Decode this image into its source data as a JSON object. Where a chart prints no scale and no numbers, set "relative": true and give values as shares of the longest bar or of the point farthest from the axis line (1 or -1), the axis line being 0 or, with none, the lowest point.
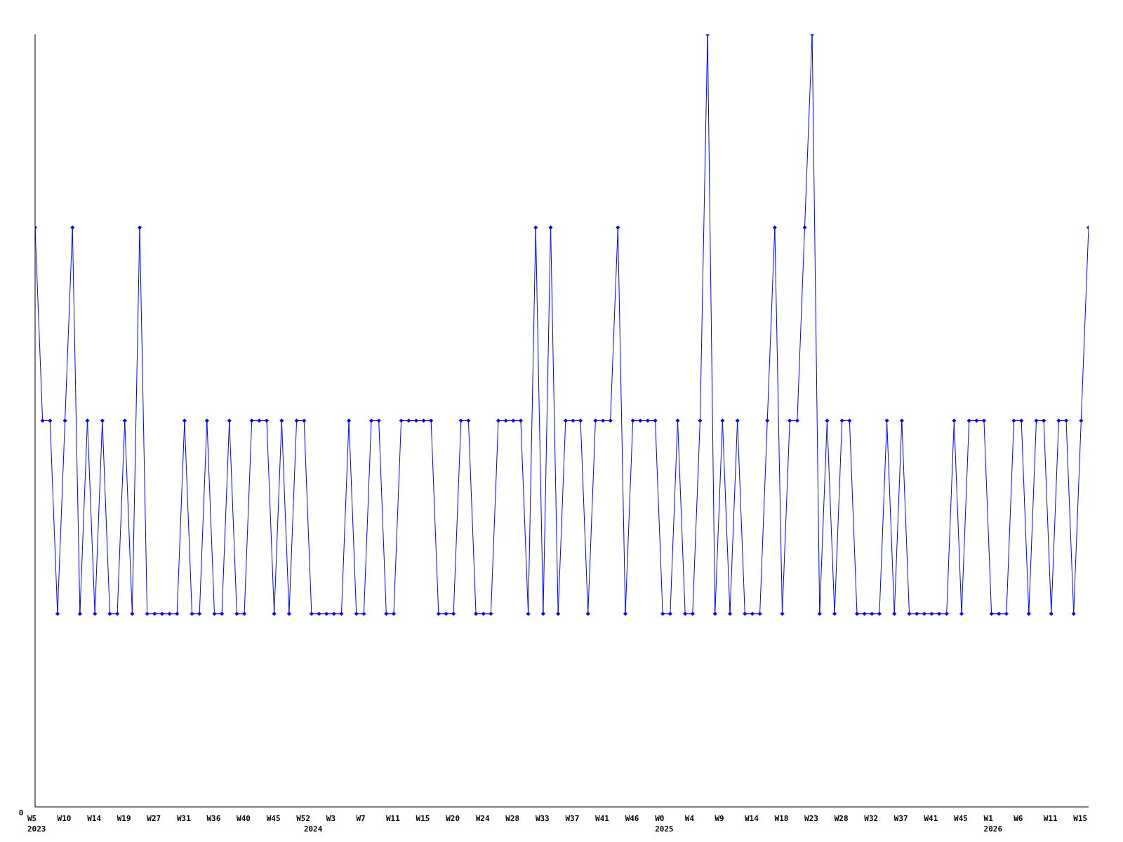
{
  "chart_data": {
    "type": "line",
    "relative": true,
    "annotations": [
      "0"
    ],
    "marker": "diamond",
    "line_style": "solid",
    "categories": [
      "W5\n2023",
      null,
      null,
      null,
      "W10",
      null,
      null,
      null,
      "W14",
      null,
      null,
      null,
      "W19",
      null,
      null,
      null,
      "W27",
      null,
      null,
      null,
      "W31",
      null,
      null,
      null,
      "W36",
      null,
      null,
      null,
      "W40",
      null,
      null,
      null,
      "W45",
      null,
      null,
      null,
      "W52",
      "\n2024",
      null,
      null,
      "W3",
      null,
      null,
      null,
      "W7",
      null,
      null,
      null,
      "W11",
      null,
      null,
      null,
      "W15",
      null,
      null,
      null,
      "W20",
      null,
      null,
      null,
      "W24",
      null,
      null,
      null,
      "W28",
      null,
      null,
      null,
      "W33",
      null,
      null,
      null,
      "W37",
      null,
      null,
      null,
      "W41",
      null,
      null,
      null,
      "W46",
      null,
      null,
      null,
      "W0\n2025",
      null,
      null,
      null,
      "W4",
      null,
      null,
      null,
      "W9",
      null,
      null,
      null,
      "W14",
      null,
      null,
      null,
      "W18",
      null,
      null,
      null,
      "W23",
      null,
      null,
      null,
      "W28",
      null,
      null,
      null,
      "W32",
      null,
      null,
      null,
      "W37",
      null,
      null,
      null,
      "W41",
      null,
      null,
      null,
      "W45",
      null,
      null,
      null,
      "W1\n2026",
      null,
      null,
      null,
      "W6",
      null,
      null,
      null,
      "W11",
      null,
      null,
      null,
      "W15",
      null
    ],
    "series": [
      {
        "color": "#0000ff",
        "values": [
          0.75,
          0.5,
          0.5,
          0.25,
          0.5,
          0.75,
          0.25,
          0.5,
          0.25,
          0.5,
          0.25,
          0.25,
          0.5,
          0.25,
          0.75,
          0.25,
          0.25,
          0.25,
          0.25,
          0.25,
          0.5,
          0.25,
          0.25,
          0.5,
          0.25,
          0.25,
          0.5,
          0.25,
          0.25,
          0.5,
          0.5,
          0.5,
          0.25,
          0.5,
          0.25,
          0.5,
          0.5,
          0.25,
          0.25,
          0.25,
          0.25,
          0.25,
          0.5,
          0.25,
          0.25,
          0.5,
          0.5,
          0.25,
          0.25,
          0.5,
          0.5,
          0.5,
          0.5,
          0.5,
          0.25,
          0.25,
          0.25,
          0.5,
          0.5,
          0.25,
          0.25,
          0.25,
          0.5,
          0.5,
          0.5,
          0.5,
          0.25,
          0.75,
          0.25,
          0.75,
          0.25,
          0.5,
          0.5,
          0.5,
          0.25,
          0.5,
          0.5,
          0.5,
          0.75,
          0.25,
          0.5,
          0.5,
          0.5,
          0.5,
          0.25,
          0.25,
          0.5,
          0.25,
          0.25,
          0.5,
          1,
          0.25,
          0.5,
          0.25,
          0.5,
          0.25,
          0.25,
          0.25,
          0.5,
          0.75,
          0.25,
          0.5,
          0.5,
          0.75,
          1,
          0.25,
          0.5,
          0.25,
          0.5,
          0.5,
          0.25,
          0.25,
          0.25,
          0.25,
          0.5,
          0.25,
          0.5,
          0.25,
          0.25,
          0.25,
          0.25,
          0.25,
          0.25,
          0.5,
          0.25,
          0.5,
          0.5,
          0.5,
          0.25,
          0.25,
          0.25,
          0.5,
          0.5,
          0.25,
          0.5,
          0.5,
          0.25,
          0.5,
          0.5,
          0.25,
          0.5,
          0.75
        ]
      }
    ]
  }
}
